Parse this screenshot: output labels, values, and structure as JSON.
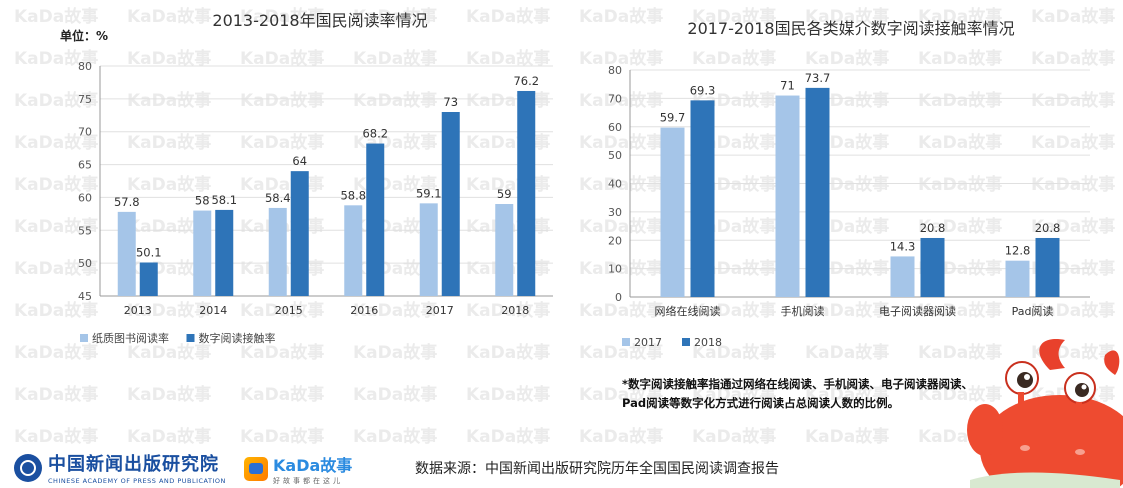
{
  "watermark": {
    "text": "KaDa故事"
  },
  "colors": {
    "light_bar": "#a5c5e8",
    "dark_bar": "#2e74b8",
    "axis": "#777777",
    "watermark": "#ebebeb"
  },
  "chart_data": [
    {
      "type": "bar",
      "title": "2013-2018年国民阅读率情况",
      "unit_label": "单位：%",
      "categories": [
        "2013",
        "2014",
        "2015",
        "2016",
        "2017",
        "2018"
      ],
      "series": [
        {
          "name": "纸质图书阅读率",
          "values": [
            57.8,
            58,
            58.4,
            58.8,
            59.1,
            59
          ]
        },
        {
          "name": "数字阅读接触率",
          "values": [
            50.1,
            58.1,
            64,
            68.2,
            73,
            76.2
          ]
        }
      ],
      "ylim": [
        45,
        80
      ],
      "yticks": [
        45,
        50,
        55,
        60,
        65,
        70,
        75,
        80
      ],
      "grid": true,
      "legend": "bottom-left"
    },
    {
      "type": "bar",
      "title": "2017-2018国民各类媒介数字阅读接触率情况",
      "categories": [
        "网络在线阅读",
        "手机阅读",
        "电子阅读器阅读",
        "Pad阅读"
      ],
      "series": [
        {
          "name": "2017",
          "values": [
            59.7,
            71,
            14.3,
            12.8
          ]
        },
        {
          "name": "2018",
          "values": [
            69.3,
            73.7,
            20.8,
            20.8
          ]
        }
      ],
      "ylim": [
        0,
        80
      ],
      "yticks": [
        0,
        10,
        20,
        30,
        40,
        50,
        60,
        70,
        80
      ],
      "grid": true,
      "legend": "bottom-left"
    }
  ],
  "footnote": "*数字阅读接触率指通过网络在线阅读、手机阅读、电子阅读器阅读、Pad阅读等数字化方式进行阅读占总阅读人数的比例。",
  "footer": {
    "cap_name": "中国新闻出版研究院",
    "cap_english": "CHINESE ACADEMY OF PRESS AND PUBLICATION",
    "kada_name": "KaDa故事",
    "kada_slogan": "好故事都在这儿",
    "source": "数据来源：中国新闻出版研究院历年全国国民阅读调查报告"
  }
}
